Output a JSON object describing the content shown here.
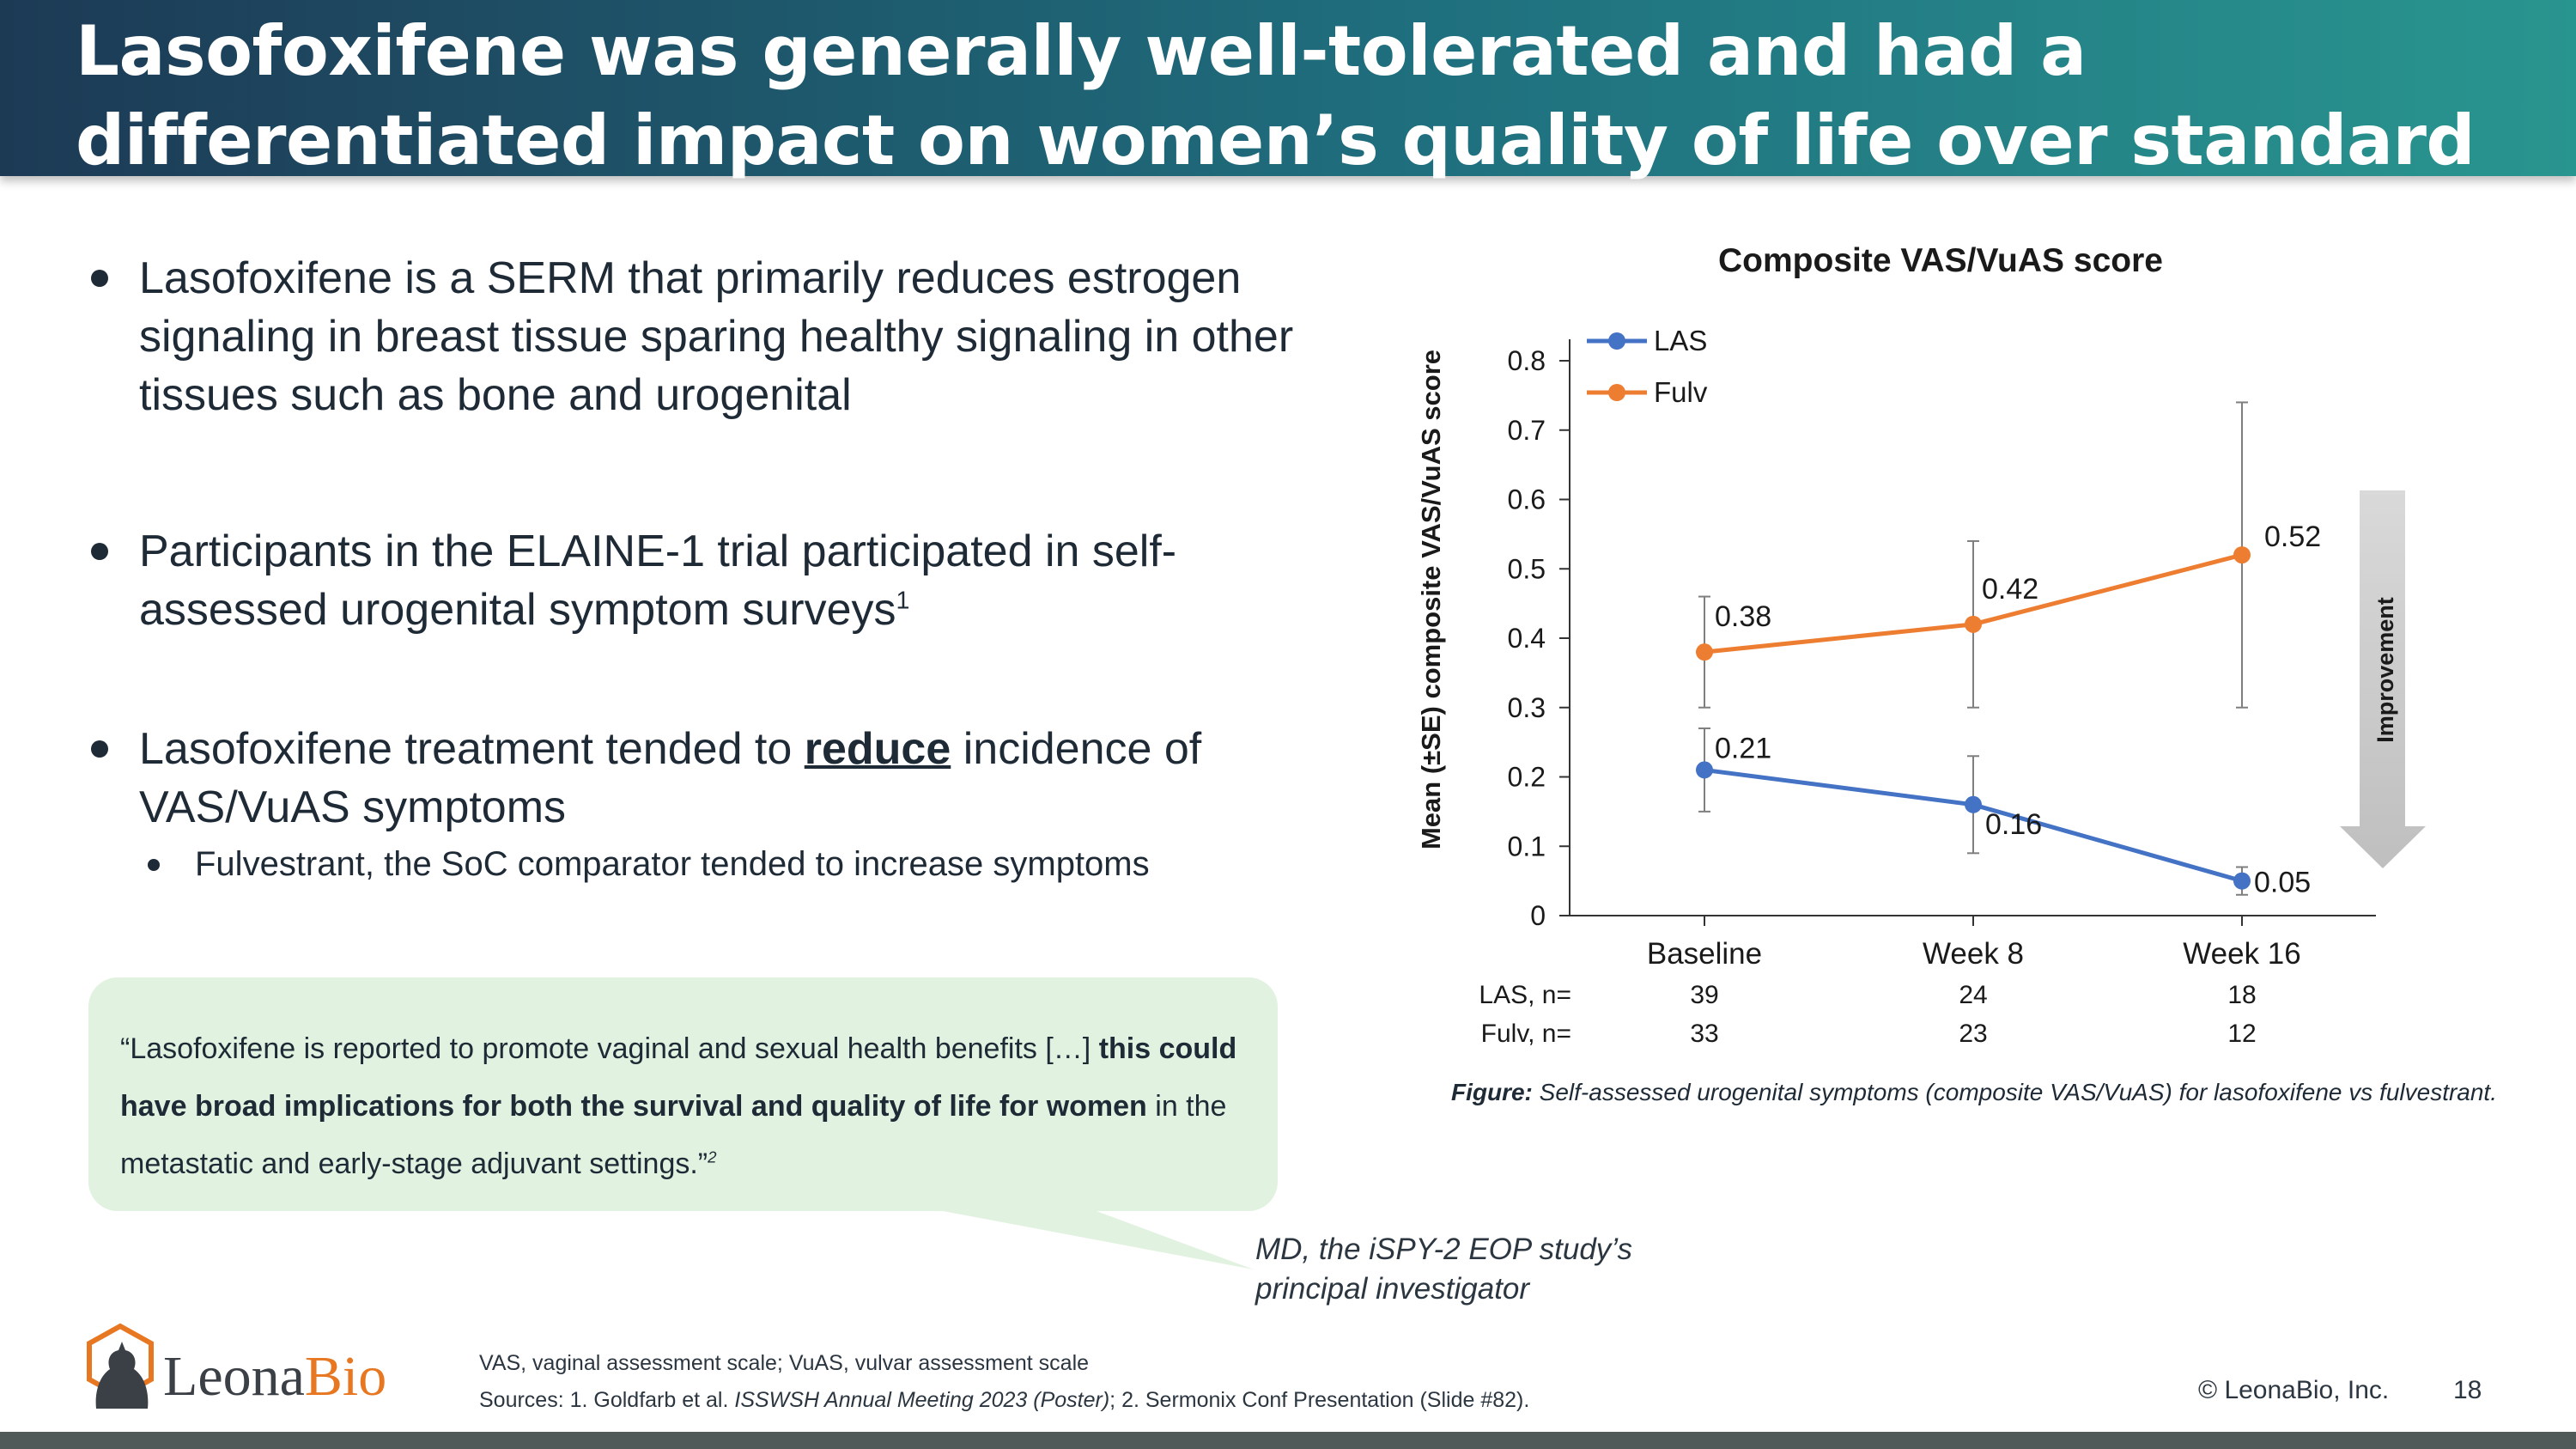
{
  "title": "Lasofoxifene was generally well-tolerated and had a differentiated impact on women’s quality of life over standard of care in early trials",
  "bullets": {
    "b1": "Lasofoxifene is a SERM that primarily reduces estrogen signaling in breast tissue sparing healthy signaling in other tissues such as bone and urogenital",
    "b2_text": "Participants in the ELAINE-1 trial participated in self-assessed urogenital symptom surveys",
    "b2_sup": "1",
    "b3_pre": "Lasofoxifene treatment tended to ",
    "b3_emph": "reduce",
    "b3_post": " incidence of VAS/VuAS symptoms",
    "sub": "Fulvestrant, the SoC comparator tended to increase symptoms"
  },
  "quote": {
    "part1": "“Lasofoxifene is reported to promote vaginal and sexual health benefits […] ",
    "bold": "this could have broad implications for both the survival and quality of life for women",
    "part2": " in the metastatic and early-stage adjuvant settings.”",
    "sup": "2",
    "attribution": "MD, the iSPY-2 EOP study’s principal investigator"
  },
  "chart_data": {
    "type": "line",
    "title": "Composite VAS/VuAS score",
    "ylabel": "Mean (±SE) composite VAS/VuAS score",
    "xlabel": "",
    "categories": [
      "Baseline",
      "Week 8",
      "Week 16"
    ],
    "ylim": [
      0,
      0.8
    ],
    "yticks": [
      "0",
      "0.1",
      "0.2",
      "0.3",
      "0.4",
      "0.5",
      "0.6",
      "0.7",
      "0.8"
    ],
    "grid": false,
    "legend_position": "top-left",
    "series": [
      {
        "name": "LAS",
        "color": "#4472c4",
        "values": [
          0.21,
          0.16,
          0.05
        ],
        "labels": [
          "0.21",
          "0.16",
          "0.05"
        ],
        "err_low": [
          0.15,
          0.09,
          0.03
        ],
        "err_high": [
          0.27,
          0.23,
          0.07
        ]
      },
      {
        "name": "Fulv",
        "color": "#ed7d31",
        "values": [
          0.38,
          0.42,
          0.52
        ],
        "labels": [
          "0.38",
          "0.42",
          "0.52"
        ],
        "err_low": [
          0.3,
          0.3,
          0.3
        ],
        "err_high": [
          0.46,
          0.54,
          0.74
        ]
      }
    ],
    "n_table": [
      {
        "label": "LAS, n=",
        "values": [
          "39",
          "24",
          "18"
        ]
      },
      {
        "label": "Fulv, n=",
        "values": [
          "33",
          "23",
          "12"
        ]
      }
    ],
    "annotation": "Improvement"
  },
  "figure_caption": {
    "label": "Figure:",
    "text": " Self-assessed urogenital symptoms (composite VAS/VuAS) for lasofoxifene vs fulvestrant."
  },
  "logo": {
    "part1": "Leona",
    "part2": "Bio",
    "color1": "#3b3f46",
    "color2": "#e87722"
  },
  "footnotes": {
    "line1": "VAS, vaginal assessment scale; VuAS, vulvar assessment scale",
    "line2_pre": "Sources: 1. Goldfarb et al. ",
    "line2_italic": "ISSWSH Annual Meeting 2023 (Poster)",
    "line2_post": "; 2. Sermonix Conf Presentation (Slide #82)."
  },
  "copyright": "© LeonaBio, Inc.",
  "page_number": "18"
}
